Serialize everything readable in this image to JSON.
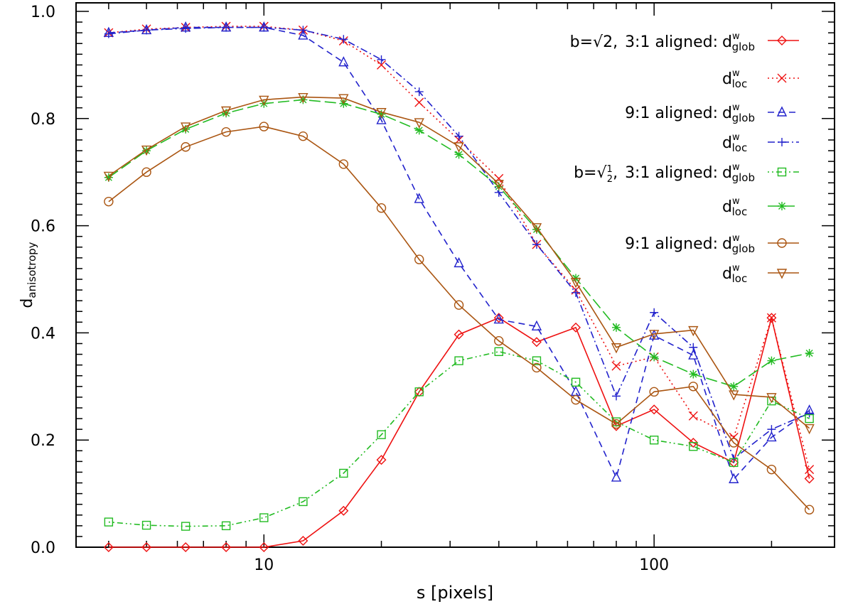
{
  "chart_data": {
    "type": "line",
    "title": "",
    "xlabel": "s [pixels]",
    "ylabel_main": "d",
    "ylabel_sub": "anisotropy",
    "xscale": "log",
    "xlim": [
      3.3,
      290
    ],
    "ylim": [
      0.0,
      1.0
    ],
    "x_tick_labels": [
      {
        "value": 10,
        "label": "10"
      },
      {
        "value": 100,
        "label": "100"
      }
    ],
    "y_tick_labels": [
      {
        "value": 0.0,
        "label": "0.0"
      },
      {
        "value": 0.2,
        "label": "0.2"
      },
      {
        "value": 0.4,
        "label": "0.4"
      },
      {
        "value": 0.6,
        "label": "0.6"
      },
      {
        "value": 0.8,
        "label": "0.8"
      },
      {
        "value": 1.0,
        "label": "1.0"
      }
    ],
    "x": [
      4,
      5,
      6.3,
      8,
      10,
      12.6,
      16,
      20,
      25,
      31.6,
      40,
      50,
      63,
      80,
      100,
      126,
      160,
      200,
      250
    ],
    "legend": {
      "placement": "top-right",
      "group1": {
        "prefix": "b=",
        "radical": "√2,",
        "ratio_a": "3:1 aligned:",
        "ratio_b": "9:1 aligned:"
      },
      "group2": {
        "prefix": "b=",
        "radical": "√",
        "num": "1",
        "den": "2",
        "comma": ",",
        "ratio_a": "3:1 aligned:",
        "ratio_b": "9:1 aligned:"
      },
      "d": "d",
      "sup": "w",
      "glob": "glob",
      "loc": "loc"
    },
    "series": [
      {
        "name": "b=√2, 3:1 aligned: d_glob^w",
        "color": "#ee1111",
        "dash": "",
        "marker": "diamond",
        "values": [
          0.0,
          0.0,
          0.0,
          0.0,
          0.0,
          0.012,
          0.068,
          0.163,
          0.29,
          0.397,
          0.428,
          0.383,
          0.41,
          0.226,
          0.257,
          0.195,
          0.158,
          0.428,
          0.128
        ]
      },
      {
        "name": "b=√2, 3:1 aligned: d_loc^w",
        "color": "#ee1111",
        "dash": "2,4",
        "marker": "x",
        "values": [
          0.96,
          0.967,
          0.97,
          0.972,
          0.972,
          0.965,
          0.945,
          0.9,
          0.83,
          0.76,
          0.688,
          0.565,
          0.48,
          0.338,
          0.355,
          0.245,
          0.205,
          0.428,
          0.145
        ]
      },
      {
        "name": "9:1 aligned: d_glob^w",
        "color": "#2222cc",
        "dash": "9,6",
        "marker": "triangle",
        "values": [
          0.96,
          0.965,
          0.97,
          0.97,
          0.97,
          0.955,
          0.905,
          0.797,
          0.65,
          0.53,
          0.425,
          0.412,
          0.29,
          0.13,
          0.395,
          0.358,
          0.127,
          0.205,
          0.255
        ]
      },
      {
        "name": "9:1 aligned: d_loc^w",
        "color": "#2222cc",
        "dash": "10,4,2,4",
        "marker": "plus",
        "values": [
          0.958,
          0.965,
          0.968,
          0.97,
          0.97,
          0.965,
          0.948,
          0.91,
          0.85,
          0.767,
          0.662,
          0.565,
          0.475,
          0.282,
          0.438,
          0.373,
          0.165,
          0.22,
          0.25
        ]
      },
      {
        "name": "b=√(1/2), 3:1 aligned: d_glob^w",
        "color": "#22bb22",
        "dash": "2,4,2,4,8,4",
        "marker": "square",
        "values": [
          0.047,
          0.041,
          0.039,
          0.04,
          0.055,
          0.085,
          0.138,
          0.21,
          0.29,
          0.348,
          0.365,
          0.348,
          0.308,
          0.234,
          0.2,
          0.188,
          0.158,
          0.273,
          0.24
        ]
      },
      {
        "name": "b=√(1/2), 3:1 aligned: d_loc^w",
        "color": "#22bb22",
        "dash": "16,6",
        "marker": "asterisk",
        "values": [
          0.69,
          0.74,
          0.78,
          0.81,
          0.828,
          0.835,
          0.828,
          0.808,
          0.778,
          0.733,
          0.673,
          0.593,
          0.502,
          0.41,
          0.355,
          0.323,
          0.3,
          0.348,
          0.362
        ]
      },
      {
        "name": "b=√(1/2), 9:1 aligned: d_glob^w",
        "color": "#aa5511",
        "dash": "",
        "marker": "circle",
        "values": [
          0.645,
          0.7,
          0.747,
          0.775,
          0.785,
          0.767,
          0.715,
          0.633,
          0.537,
          0.452,
          0.385,
          0.335,
          0.275,
          0.23,
          0.29,
          0.3,
          0.195,
          0.145,
          0.07
        ]
      },
      {
        "name": "b=√(1/2), 9:1 aligned: d_loc^w",
        "color": "#aa5511",
        "dash": "",
        "marker": "triangle-down",
        "values": [
          0.693,
          0.742,
          0.785,
          0.815,
          0.835,
          0.84,
          0.838,
          0.812,
          0.793,
          0.748,
          0.678,
          0.597,
          0.495,
          0.373,
          0.398,
          0.405,
          0.285,
          0.28,
          0.222
        ]
      }
    ]
  }
}
